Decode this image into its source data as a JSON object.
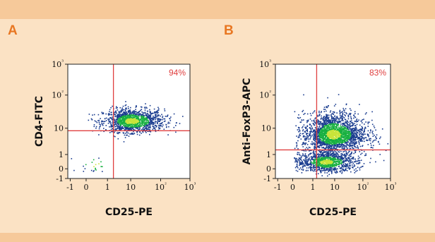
{
  "chart_data": [
    {
      "panel_label": "A",
      "type": "scatter",
      "xlabel": "CD25-PE",
      "ylabel": "CD4-FITC",
      "x_ticks": [
        "-1",
        "0",
        "1",
        "10",
        "10²",
        "10³"
      ],
      "y_ticks": [
        "-1",
        "0",
        "1",
        "10",
        "10²",
        "10³"
      ],
      "x_axis": "log (biexponential)",
      "y_axis": "log (biexponential)",
      "xlim": [
        -1,
        1000
      ],
      "ylim": [
        -1,
        1000
      ],
      "gate": {
        "x": 1.8,
        "y": 8
      },
      "quadrant_label": "94%",
      "quadrant_label_position": "top-right",
      "populations": [
        {
          "name": "main",
          "x_center": 10,
          "y_center": 17,
          "x_spread_decades": 0.55,
          "y_spread_decades": 0.18,
          "points": 1400
        },
        {
          "name": "low",
          "x_center": 0.4,
          "y_center": 0.3,
          "x_spread_decades": 0.25,
          "y_spread_decades": 0.2,
          "points": 22
        }
      ],
      "colors": {
        "points": "#1a3c8f",
        "density": "#18b040",
        "core": "#c8e43a",
        "gate": "#e04040"
      }
    },
    {
      "panel_label": "B",
      "type": "scatter",
      "xlabel": "CD25-PE",
      "ylabel": "Anti-FoxP3-APC",
      "x_ticks": [
        "-1",
        "0",
        "1",
        "10",
        "10²",
        "10³"
      ],
      "y_ticks": [
        "-1",
        "0",
        "1",
        "10",
        "10²",
        "10³"
      ],
      "x_axis": "log (biexponential)",
      "y_axis": "log (biexponential)",
      "xlim": [
        -1,
        1000
      ],
      "ylim": [
        -1,
        1000
      ],
      "gate": {
        "x": 1.5,
        "y": 1.5
      },
      "quadrant_label": "83%",
      "quadrant_label_position": "top-right",
      "populations": [
        {
          "name": "upper",
          "x_center": 8,
          "y_center": 6,
          "x_spread_decades": 0.6,
          "y_spread_decades": 0.35,
          "points": 2300
        },
        {
          "name": "lower",
          "x_center": 4,
          "y_center": 0.5,
          "x_spread_decades": 0.6,
          "y_spread_decades": 0.35,
          "points": 1100
        }
      ],
      "colors": {
        "points": "#1a3c8f",
        "density": "#18b040",
        "core": "#c8e43a",
        "gate": "#e04040"
      }
    }
  ]
}
